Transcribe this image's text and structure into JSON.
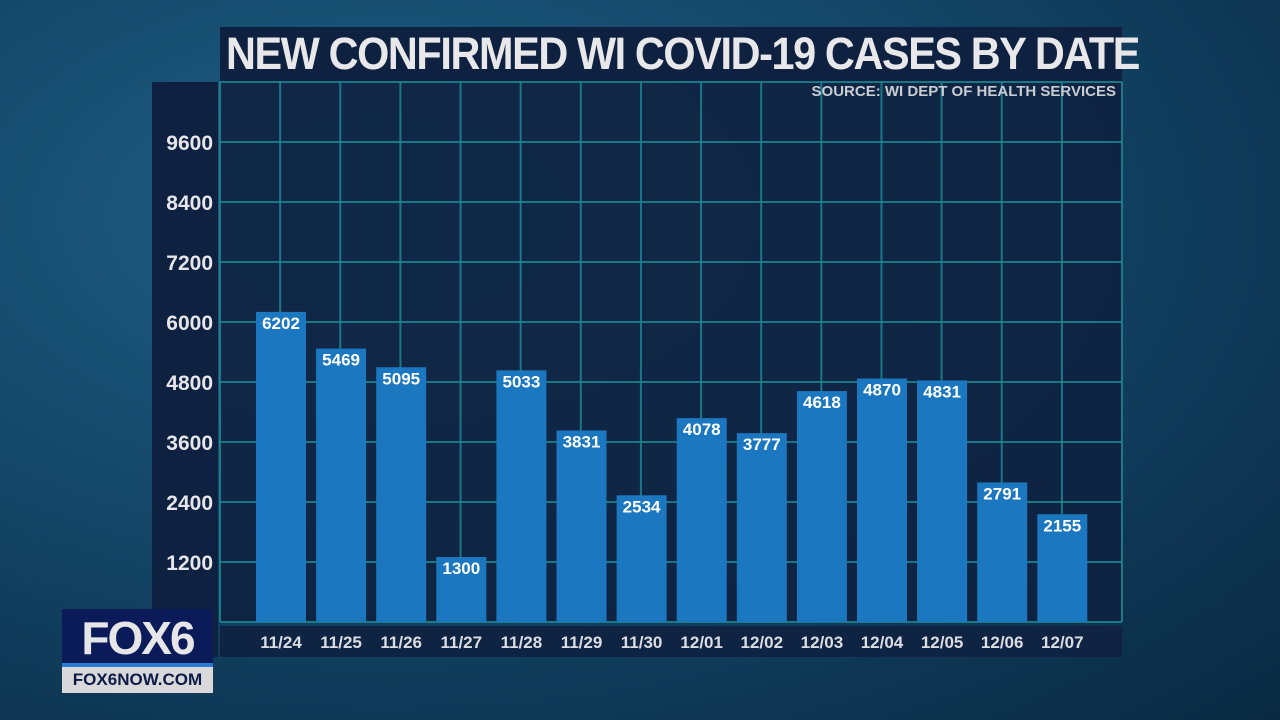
{
  "chart_data": {
    "type": "bar",
    "title": "NEW CONFIRMED WI COVID-19 CASES BY DATE",
    "subtitle": "SOURCE: WI DEPT OF HEALTH SERVICES",
    "categories": [
      "11/24",
      "11/25",
      "11/26",
      "11/27",
      "11/28",
      "11/29",
      "11/30",
      "12/01",
      "12/02",
      "12/03",
      "12/04",
      "12/05",
      "12/06",
      "12/07"
    ],
    "values": [
      6202,
      5469,
      5095,
      1300,
      5033,
      3831,
      2534,
      4078,
      3777,
      4618,
      4870,
      4831,
      2791,
      2155
    ],
    "yticks": [
      1200,
      2400,
      3600,
      4800,
      6000,
      7200,
      8400,
      9600
    ],
    "ylim": [
      0,
      10800
    ],
    "grid": true,
    "data_labels": true,
    "colors": {
      "bar": "#1b78c0",
      "grid": "#1e8c96",
      "panel": "#0f2140"
    }
  },
  "branding": {
    "logo": "FOX6",
    "url": "FOX6NOW.COM"
  }
}
